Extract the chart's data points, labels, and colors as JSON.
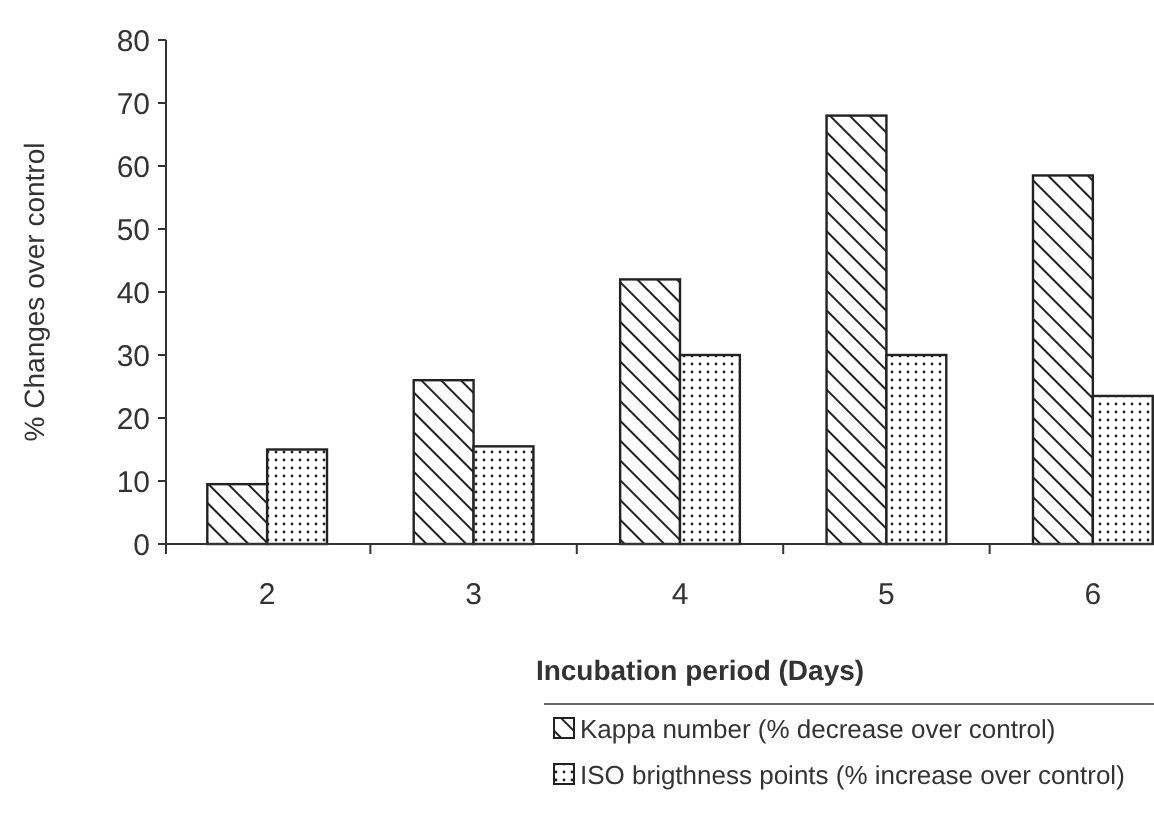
{
  "chart_data": {
    "type": "bar",
    "xlabel": "Incubation period (Days)",
    "ylabel": "% Changes over control",
    "categories": [
      "2",
      "3",
      "4",
      "5",
      "6"
    ],
    "series": [
      {
        "name": "Kappa number (% decrease over control)",
        "color": "#222222",
        "values": [
          9.5,
          26,
          42,
          68,
          58.5
        ]
      },
      {
        "name": "ISO brigthness points (% increase over control)",
        "color": "#222222",
        "values": [
          15,
          15.5,
          30,
          30,
          23.5
        ]
      }
    ],
    "ylim": [
      0,
      80
    ],
    "yticks": [
      0,
      10,
      20,
      30,
      40,
      50,
      60,
      70,
      80
    ],
    "grid": false,
    "legend": "bottom"
  }
}
